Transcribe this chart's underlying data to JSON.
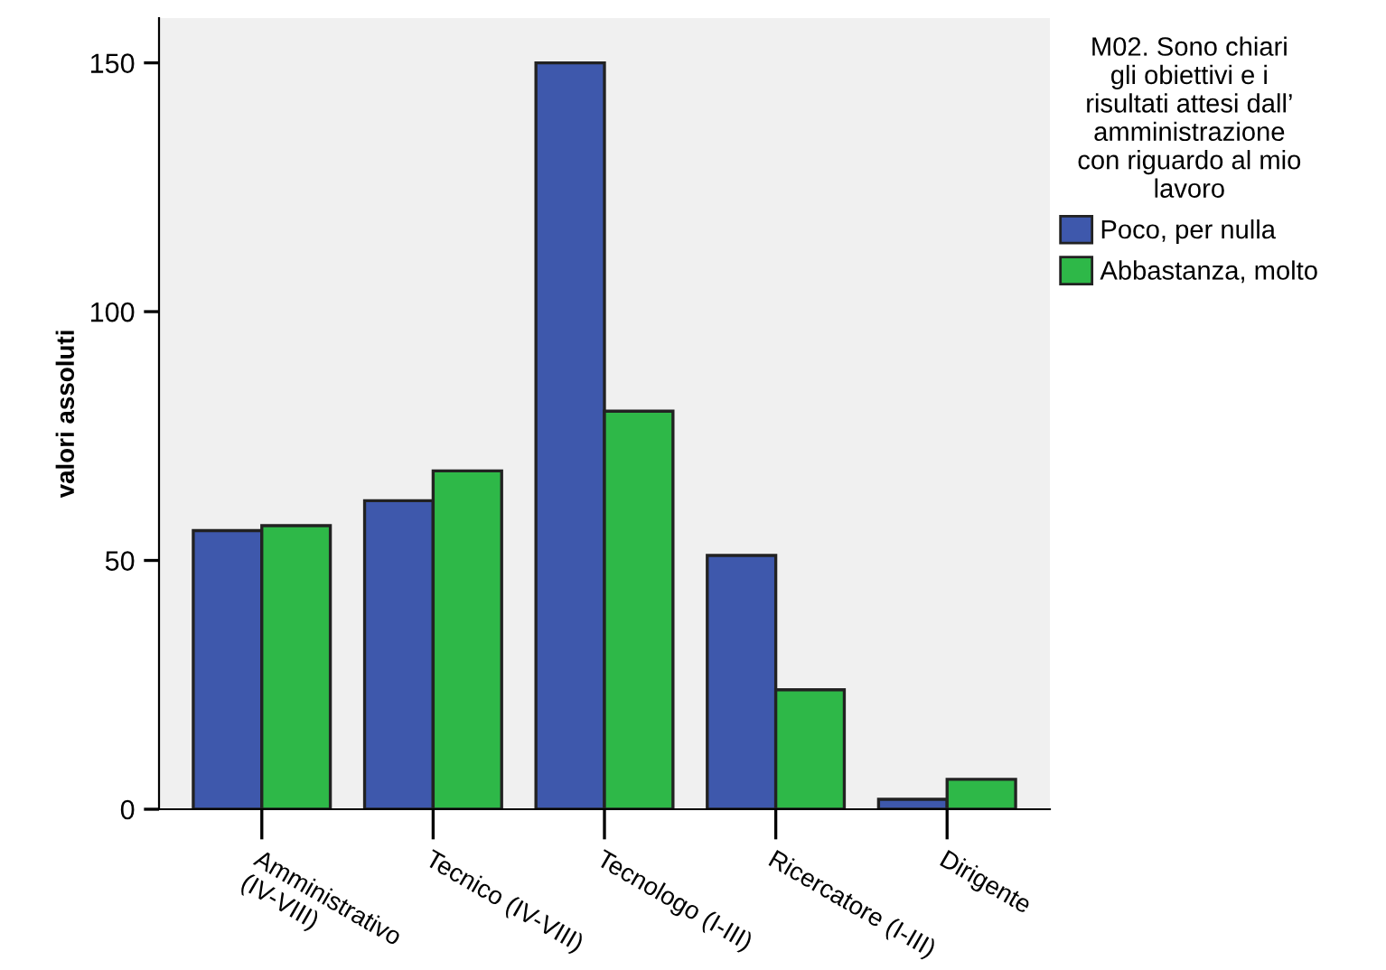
{
  "chart_data": {
    "type": "bar",
    "categories": [
      "Amministrativo\n(IV-VIII)",
      "Tecnico (IV-VIII)",
      "Tecnologo (I-III)",
      "Ricercatore (I-III)",
      "Dirigente"
    ],
    "ylabel": "valori assoluti",
    "legend_title": "M02. Sono chiari\ngli obiettivi e i\nrisultati attesi dall’\namministrazione\ncon riguardo al mio\nlavoro",
    "series": [
      {
        "name": "Poco, per nulla",
        "color": "#3e58ac",
        "values": [
          56,
          62,
          150,
          51,
          2
        ]
      },
      {
        "name": "Abbastanza, molto",
        "color": "#2eb848",
        "values": [
          57,
          68,
          80,
          24,
          6
        ]
      }
    ],
    "ylim": [
      0,
      159
    ],
    "yticks": [
      0,
      50,
      100,
      150
    ],
    "grid": false,
    "legend": "right"
  }
}
